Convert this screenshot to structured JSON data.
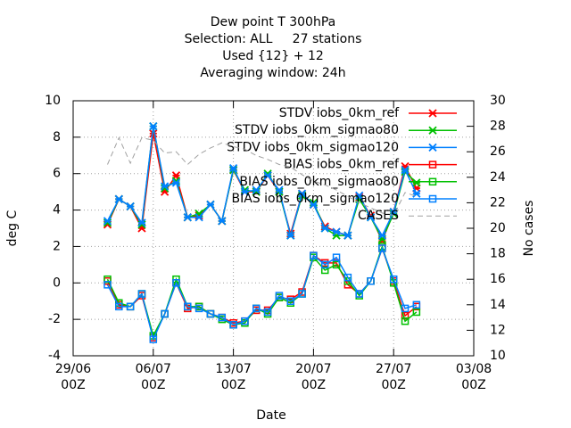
{
  "chart_data": {
    "type": "line",
    "title": [
      "Dew point T 300hPa",
      "Selection: ALL     27 stations",
      "Used {12} + 12",
      "Averaging window: 24h"
    ],
    "xlabel": "Date",
    "ylabel": "deg C",
    "y2label": "No cases",
    "x": [
      3,
      4,
      5,
      6,
      7,
      8,
      9,
      10,
      11,
      12,
      13,
      14,
      15,
      16,
      17,
      18,
      19,
      20,
      21,
      22,
      23,
      24,
      25,
      26,
      27,
      28,
      29,
      30
    ],
    "xlim": [
      0,
      35
    ],
    "xticks": [
      {
        "value": 0,
        "label": "29/06\n00Z"
      },
      {
        "value": 7,
        "label": "06/07\n00Z"
      },
      {
        "value": 14,
        "label": "13/07\n00Z"
      },
      {
        "value": 21,
        "label": "20/07\n00Z"
      },
      {
        "value": 28,
        "label": "27/07\n00Z"
      },
      {
        "value": 35,
        "label": "03/08\n00Z"
      }
    ],
    "ylim": [
      -4,
      10
    ],
    "yticks": [
      -4,
      -2,
      0,
      2,
      4,
      6,
      8,
      10
    ],
    "y2lim": [
      10,
      30
    ],
    "y2ticks": [
      10,
      12,
      14,
      16,
      18,
      20,
      22,
      24,
      26,
      28,
      30
    ],
    "grid": true,
    "legend": "upper right",
    "series": [
      {
        "name": "STDV iobs_0km_ref",
        "color": "#ff0000",
        "marker": "x",
        "values": [
          3.2,
          4.6,
          4.2,
          3.0,
          8.2,
          5.0,
          5.9,
          3.6,
          3.7,
          4.3,
          3.4,
          6.2,
          5.0,
          5.0,
          5.9,
          5.0,
          2.7,
          4.9,
          4.3,
          3.1,
          2.8,
          2.6,
          4.7,
          3.7,
          2.3,
          3.9,
          6.4,
          5.2
        ]
      },
      {
        "name": "STDV iobs_0km_sigmao80",
        "color": "#00c000",
        "marker": "x",
        "values": [
          3.3,
          4.6,
          4.2,
          3.2,
          8.6,
          5.2,
          5.6,
          3.6,
          3.8,
          4.3,
          3.4,
          6.2,
          5.1,
          5.0,
          6.0,
          5.0,
          2.6,
          4.8,
          4.4,
          3.0,
          2.6,
          2.6,
          4.6,
          3.6,
          2.4,
          3.8,
          6.1,
          5.5
        ]
      },
      {
        "name": "STDV iobs_0km_sigmao120",
        "color": "#0080ff",
        "marker": "x",
        "values": [
          3.4,
          4.6,
          4.2,
          3.3,
          8.6,
          5.3,
          5.5,
          3.6,
          3.6,
          4.3,
          3.4,
          6.3,
          5.0,
          5.1,
          5.9,
          5.1,
          2.6,
          4.9,
          4.3,
          3.0,
          2.8,
          2.6,
          4.8,
          3.6,
          2.6,
          3.9,
          6.2,
          4.9
        ]
      },
      {
        "name": "BIAS iobs_0km_ref",
        "color": "#ff0000",
        "marker": "square",
        "values": [
          0.1,
          -1.2,
          -1.3,
          -0.7,
          -3.0,
          -1.7,
          0.0,
          -1.4,
          -1.3,
          -1.7,
          -1.9,
          -2.2,
          -2.1,
          -1.5,
          -1.5,
          -0.8,
          -0.9,
          -0.5,
          1.5,
          1.1,
          1.1,
          -0.1,
          -0.6,
          0.1,
          1.9,
          0.1,
          -1.8,
          -1.3
        ]
      },
      {
        "name": "BIAS iobs_0km_sigmao80",
        "color": "#00c000",
        "marker": "square",
        "values": [
          0.2,
          -1.1,
          -1.3,
          -0.6,
          -2.9,
          -1.7,
          0.2,
          -1.3,
          -1.3,
          -1.7,
          -2.0,
          -2.3,
          -2.2,
          -1.4,
          -1.7,
          -0.8,
          -1.1,
          -0.6,
          1.4,
          0.7,
          1.0,
          0.1,
          -0.7,
          0.1,
          2.0,
          0.0,
          -2.1,
          -1.6
        ]
      },
      {
        "name": "BIAS iobs_0km_sigmao120",
        "color": "#0080ff",
        "marker": "square",
        "values": [
          -0.1,
          -1.3,
          -1.3,
          -0.6,
          -3.1,
          -1.7,
          0.0,
          -1.3,
          -1.4,
          -1.7,
          -1.9,
          -2.3,
          -2.1,
          -1.4,
          -1.6,
          -0.7,
          -1.0,
          -0.6,
          1.5,
          1.0,
          1.4,
          0.3,
          -0.6,
          0.1,
          1.9,
          0.2,
          -1.4,
          -1.2
        ]
      },
      {
        "name": "CASES",
        "color": "#a0a0a0",
        "dashed": true,
        "axis": "y2",
        "values": [
          25.0,
          27.1,
          25.1,
          27.1,
          26.9,
          25.9,
          26.0,
          25.0,
          25.8,
          26.3,
          26.7,
          26.4,
          26.2,
          25.7,
          25.4,
          25.0,
          24.8,
          24.2,
          23.7,
          23.4,
          23.0,
          22.5,
          22.0,
          21.6,
          21.2,
          21.0,
          22.8,
          22.5
        ]
      }
    ]
  }
}
